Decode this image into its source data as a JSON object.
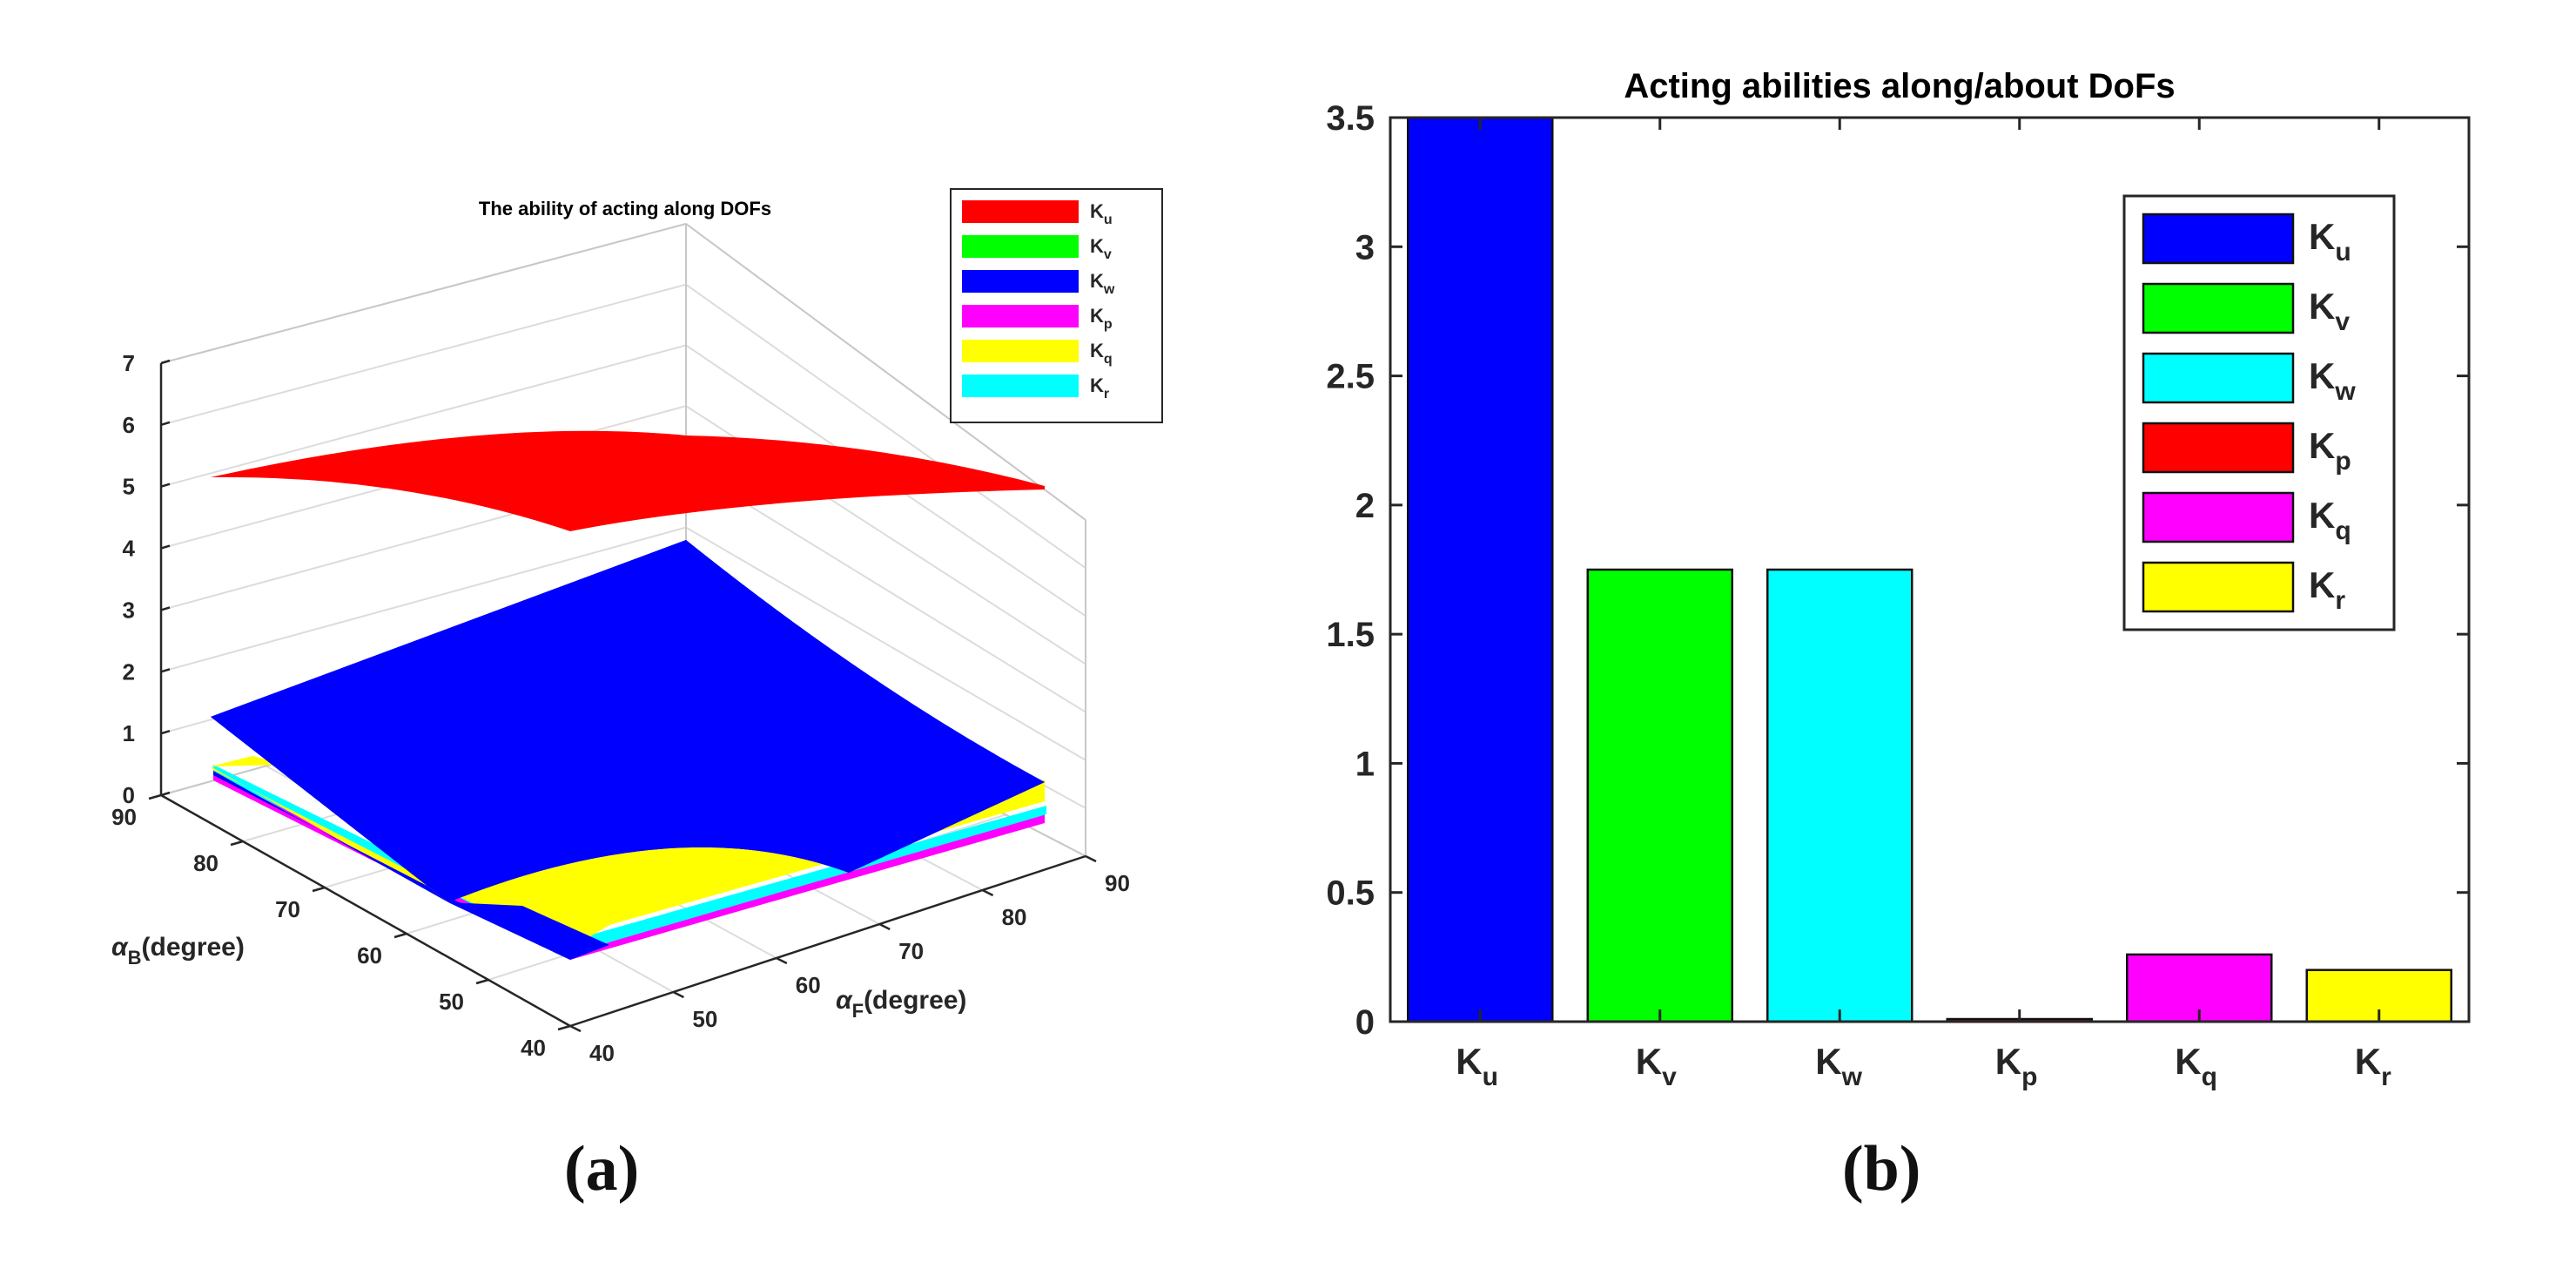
{
  "chart_data": [
    {
      "type": "surface3d",
      "panel": "(a)",
      "title": "The ability of acting along DOFs",
      "xlabel_sym": "α",
      "xlabel_sub": "F",
      "xlabel_rest": "(degree)",
      "ylabel_sym": "α",
      "ylabel_sub": "B",
      "ylabel_rest": "(degree)",
      "zlim": [
        0,
        7
      ],
      "xlim": [
        40,
        90
      ],
      "ylim": [
        40,
        90
      ],
      "z_ticks": [
        "0",
        "1",
        "2",
        "3",
        "4",
        "5",
        "6",
        "7"
      ],
      "x_ticks": [
        "40",
        "50",
        "60",
        "70",
        "80",
        "90"
      ],
      "y_ticks": [
        "40",
        "50",
        "60",
        "70",
        "80",
        "90"
      ],
      "legend_position": "top-right",
      "series": [
        {
          "name": "K",
          "sub": "u",
          "color": "#ff0000",
          "z_range": [
            4.3,
            5.4
          ]
        },
        {
          "name": "K",
          "sub": "v",
          "color": "#00ff00",
          "z_range": [
            0.0,
            0.3
          ]
        },
        {
          "name": "K",
          "sub": "w",
          "color": "#0000ff",
          "z_range": [
            0.0,
            4.3
          ]
        },
        {
          "name": "K",
          "sub": "p",
          "color": "#ff00ff",
          "z_range": [
            0.0,
            0.2
          ]
        },
        {
          "name": "K",
          "sub": "q",
          "color": "#ffff00",
          "z_range": [
            0.0,
            1.3
          ]
        },
        {
          "name": "K",
          "sub": "r",
          "color": "#00ffff",
          "z_range": [
            0.0,
            0.3
          ]
        }
      ]
    },
    {
      "type": "bar",
      "panel": "(b)",
      "title": "Acting abilities along/about DoFs",
      "ylim": [
        0,
        3.5
      ],
      "y_ticks": [
        "0",
        "0.5",
        "1",
        "1.5",
        "2",
        "2.5",
        "3",
        "3.5"
      ],
      "legend_position": "top-right",
      "categories": [
        {
          "name": "K",
          "sub": "u"
        },
        {
          "name": "K",
          "sub": "v"
        },
        {
          "name": "K",
          "sub": "w"
        },
        {
          "name": "K",
          "sub": "p"
        },
        {
          "name": "K",
          "sub": "q"
        },
        {
          "name": "K",
          "sub": "r"
        }
      ],
      "values": [
        3.5,
        1.75,
        1.75,
        0.01,
        0.26,
        0.2
      ],
      "colors": [
        "#0000ff",
        "#00ff00",
        "#00ffff",
        "#ff0000",
        "#ff00ff",
        "#ffff00"
      ]
    }
  ],
  "captions": {
    "a": "(a)",
    "b": "(b)"
  }
}
